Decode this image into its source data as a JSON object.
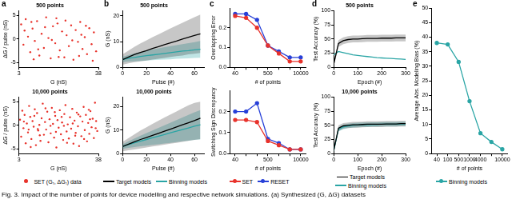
{
  "caption": "Fig. 3. Impact of the number of points for device modelling and respective network simulations. (a) Synthesized (G, ΔG) datasets",
  "chart_data": [
    {
      "type": "scatter",
      "panel": "a",
      "annotation": "500 points",
      "x_label": "G (nS)",
      "y_label": "ΔG / pulse (nS)",
      "xlim": [
        3,
        38
      ],
      "xticks": [
        3,
        38
      ],
      "ylim": [
        -6,
        6
      ],
      "yticks": [
        -5,
        0,
        5
      ],
      "grid": false,
      "x": [
        4,
        5,
        6,
        7,
        8,
        9,
        10,
        11,
        12,
        13,
        14,
        15,
        16,
        17,
        18,
        19,
        20,
        21,
        22,
        23,
        24,
        25,
        26,
        27,
        28,
        29,
        30,
        31,
        32,
        33,
        34,
        35,
        36,
        37,
        5.5,
        8.5,
        11.5,
        14.5,
        17.5,
        20.5,
        23.5,
        26.5,
        29.5,
        32.5,
        35.5,
        9.5,
        19.5,
        30.5
      ],
      "series": [
        {
          "name": "SET (Gₜ, ΔGₜ) data",
          "color": "#e8322b",
          "marker": "circle",
          "values": [
            3.1,
            -1.2,
            4.2,
            0.5,
            -2.8,
            2.2,
            -0.4,
            3.8,
            -3.5,
            1.1,
            -1.9,
            4.6,
            0.2,
            -4.1,
            2.7,
            -0.9,
            3.3,
            -2.4,
            1.6,
            -3.9,
            0.8,
            -1.5,
            2.9,
            -4.4,
            1.9,
            -0.6,
            3.6,
            -2.1,
            0.4,
            -3.2,
            2.3,
            -1.1,
            1.4,
            -2.6,
            1.8,
            3.6,
            -2.2,
            2.5,
            -0.2,
            -3.8,
            3.9,
            -0.3,
            -3.6,
            2.8,
            -4.6,
            -4.3,
            4.4,
            0.9
          ]
        }
      ]
    },
    {
      "type": "scatter",
      "annotation": "10,000 points",
      "x_label": "G (nS)",
      "y_label": "ΔG / pulse (nS)",
      "xlim": [
        3,
        38
      ],
      "xticks": [
        3,
        38
      ],
      "ylim": [
        -6,
        6
      ],
      "yticks": [
        -5,
        0,
        5
      ],
      "grid": false,
      "legend": "bottom",
      "x": [
        3.5,
        4,
        4.5,
        5,
        5.5,
        6,
        6.5,
        7,
        7.5,
        8,
        8.5,
        9,
        9.5,
        10,
        10.5,
        11,
        11.5,
        12,
        12.5,
        13,
        13.5,
        14,
        14.5,
        15,
        15.5,
        16,
        16.5,
        17,
        17.5,
        18,
        18.5,
        19,
        19.5,
        20,
        20.5,
        21,
        21.5,
        22,
        22.5,
        23,
        23.5,
        24,
        24.5,
        25,
        25.5,
        26,
        26.5,
        27,
        27.5,
        28,
        28.5,
        29,
        29.5,
        30,
        30.5,
        31,
        31.5,
        32,
        32.5,
        33,
        33.5,
        34,
        34.5,
        35,
        35.5,
        36,
        36.5,
        37,
        37.5,
        5.2,
        7.3,
        9.8,
        12.2,
        14.7,
        16.9,
        19.3,
        21.8,
        24.2,
        26.7,
        29.2,
        31.7,
        34.3,
        36.8,
        11.3,
        18.8,
        27.8,
        33.8,
        8.2,
        22.8
      ],
      "series": [
        {
          "name": "SET (Gₜ, ΔGₜ) data",
          "color": "#e8322b",
          "marker": "circle",
          "values": [
            1.2,
            -2.4,
            3.1,
            -0.6,
            2.2,
            -3.8,
            0.4,
            -1.5,
            4.1,
            1.8,
            -2.9,
            0.9,
            -0.3,
            3.4,
            -4.2,
            2.6,
            -1.1,
            0.1,
            -3.3,
            1.5,
            4.6,
            -2.0,
            0.7,
            -0.9,
            2.9,
            -3.6,
            1.3,
            -1.7,
            3.7,
            0.3,
            -2.6,
            2.0,
            -4.7,
            1.1,
            -0.5,
            3.2,
            -1.9,
            0.6,
            -3.1,
            2.4,
            4.3,
            -1.3,
            0.2,
            -2.8,
            1.7,
            -0.7,
            3.5,
            -3.9,
            1.0,
            -1.6,
            2.7,
            -0.2,
            -4.4,
            1.9,
            -2.3,
            0.8,
            3.9,
            -1.0,
            2.2,
            -3.4,
            0.5,
            -1.8,
            3.0,
            -0.4,
            1.4,
            -2.7,
            4.8,
            0.9,
            -1.2,
            0.8,
            -0.9,
            2.0,
            -2.1,
            3.6,
            -0.1,
            -1.4,
            1.8,
            -3.7,
            0.4,
            2.3,
            -2.9,
            1.3,
            -0.6,
            -0.8,
            2.8,
            -2.2,
            3.3,
            -4.6,
            -0.1
          ]
        }
      ]
    },
    {
      "type": "line",
      "panel": "b",
      "annotation": "500 points",
      "x_label": "Pulse (#)",
      "y_label": "G (nS)",
      "xlim": [
        0,
        68
      ],
      "xticks": [
        0,
        20,
        40,
        60
      ],
      "ylim": [
        0,
        22
      ],
      "yticks": [
        0,
        10,
        20
      ],
      "grid": false,
      "x": [
        0,
        5,
        10,
        15,
        20,
        25,
        30,
        35,
        40,
        45,
        50,
        55,
        60,
        65
      ],
      "series": [
        {
          "name": "Target models",
          "color": "#000000",
          "line_style": "solid",
          "values": [
            3,
            4,
            5,
            5.8,
            6.5,
            7.3,
            8,
            8.8,
            9.5,
            10.2,
            11,
            11.7,
            12.4,
            13
          ],
          "band_lower": [
            1,
            1.5,
            2,
            2.3,
            2.6,
            3,
            3.3,
            3.6,
            4,
            4.3,
            4.6,
            5,
            5.3,
            5.6
          ],
          "band_upper": [
            5,
            6.5,
            8,
            9.3,
            10.5,
            11.7,
            12.8,
            14,
            15.1,
            16.2,
            17.3,
            18.4,
            19.5,
            20.5
          ]
        },
        {
          "name": "Binning models",
          "color": "#2aa5a5",
          "line_style": "solid",
          "values": [
            3,
            3.5,
            3.8,
            4.2,
            4.5,
            4.8,
            5.1,
            5.4,
            5.7,
            6,
            6.3,
            6.5,
            6.8,
            7
          ],
          "band_lower": [
            2,
            2.2,
            2.3,
            2.5,
            2.6,
            2.8,
            2.9,
            3,
            3.1,
            3.3,
            3.4,
            3.5,
            3.6,
            3.7
          ],
          "band_upper": [
            4,
            4.8,
            5.4,
            6,
            6.5,
            7,
            7.4,
            7.8,
            8.2,
            8.6,
            9,
            9.4,
            9.8,
            10.2
          ]
        }
      ]
    },
    {
      "type": "line",
      "annotation": "10,000 points",
      "x_label": "Pulse (#)",
      "y_label": "G (nS)",
      "xlim": [
        0,
        68
      ],
      "xticks": [
        0,
        20,
        40,
        60
      ],
      "ylim": [
        0,
        24
      ],
      "yticks": [
        0,
        10,
        20
      ],
      "grid": false,
      "legend": "bottom",
      "x": [
        0,
        5,
        10,
        15,
        20,
        25,
        30,
        35,
        40,
        45,
        50,
        55,
        60,
        65
      ],
      "series": [
        {
          "name": "Target models",
          "color": "#000000",
          "line_style": "solid",
          "values": [
            3,
            4,
            5,
            6,
            6.8,
            7.7,
            8.6,
            9.5,
            10.4,
            11.3,
            12.2,
            13.1,
            14,
            15
          ],
          "band_lower": [
            1,
            1.4,
            1.8,
            2.2,
            2.6,
            3,
            3.4,
            3.8,
            4.2,
            4.6,
            5,
            5.4,
            5.8,
            6.2
          ],
          "band_upper": [
            5,
            6.6,
            8.2,
            9.8,
            11.2,
            12.6,
            14,
            15.3,
            16.6,
            17.9,
            19.2,
            20.5,
            21.5,
            22
          ]
        },
        {
          "name": "Binning models",
          "color": "#2aa5a5",
          "line_style": "solid",
          "values": [
            3,
            3.8,
            4.6,
            5.3,
            6,
            6.7,
            7.4,
            8.1,
            8.8,
            9.5,
            10.2,
            10.9,
            11.6,
            12.2
          ],
          "band_lower": [
            2,
            2.4,
            2.8,
            3.1,
            3.4,
            3.7,
            4,
            4.3,
            4.6,
            4.9,
            5.2,
            5.5,
            5.8,
            6
          ],
          "band_upper": [
            4,
            5.2,
            6.4,
            7.6,
            8.7,
            9.8,
            10.9,
            12,
            13.1,
            14.2,
            15.3,
            16.4,
            17.5,
            18.5
          ]
        }
      ]
    },
    {
      "type": "line",
      "panel": "c",
      "x_label": "# of points",
      "y_label": "Overlapping Error",
      "categories": [
        "40",
        null,
        null,
        "500",
        null,
        null,
        "10000"
      ],
      "ylim": [
        0,
        0.3
      ],
      "yticks": [
        {
          "value": 0,
          "label": "0.0"
        },
        0.1,
        0.2
      ],
      "grid": false,
      "series": [
        {
          "name": "SET",
          "color": "#e8322b",
          "marker": "circle",
          "line_style": "solid",
          "values": [
            0.26,
            0.25,
            0.2,
            0.11,
            0.07,
            0.03,
            0.03
          ]
        },
        {
          "name": "RESET",
          "color": "#2740d8",
          "marker": "circle",
          "line_style": "solid",
          "values": [
            0.27,
            0.27,
            0.24,
            0.11,
            0.08,
            0.05,
            0.05
          ]
        }
      ]
    },
    {
      "type": "line",
      "x_label": "# of points",
      "y_label": "Switching Sign Discrepancy",
      "categories": [
        "40",
        null,
        null,
        "500",
        null,
        null,
        "10000"
      ],
      "ylim": [
        0,
        0.3
      ],
      "yticks": [
        {
          "value": 0,
          "label": "0.0"
        },
        0.1,
        0.2
      ],
      "grid": false,
      "legend": "bottom",
      "series": [
        {
          "name": "SET",
          "color": "#e8322b",
          "marker": "circle",
          "line_style": "solid",
          "values": [
            0.16,
            0.16,
            0.15,
            0.06,
            0.04,
            0.02,
            0.02
          ]
        },
        {
          "name": "RESET",
          "color": "#2740d8",
          "marker": "circle",
          "line_style": "solid",
          "values": [
            0.2,
            0.2,
            0.24,
            0.07,
            0.05,
            0.02,
            0.02
          ]
        }
      ]
    },
    {
      "type": "line",
      "panel": "d",
      "annotation": "500 points",
      "x_label": "Epoch (#)",
      "y_label": "Test Accuracy (%)",
      "xlim": [
        0,
        300
      ],
      "xticks": [
        0,
        100,
        200,
        300
      ],
      "ylim": [
        0,
        100
      ],
      "yticks": [
        0,
        25,
        50,
        75,
        100
      ],
      "grid": false,
      "x": [
        0,
        20,
        40,
        60,
        80,
        100,
        120,
        140,
        160,
        180,
        200,
        220,
        240,
        260,
        280,
        300
      ],
      "series": [
        {
          "name": "Target models",
          "color": "#000000",
          "line_style": "solid",
          "values": [
            5,
            42,
            47,
            49,
            50,
            50,
            50.5,
            51,
            51,
            51,
            51.5,
            51.5,
            51.5,
            52,
            52,
            52
          ],
          "band_lower": [
            2,
            36,
            41,
            43,
            44,
            44,
            44.5,
            45,
            45,
            45,
            45.5,
            45.5,
            45.5,
            46,
            46,
            46
          ],
          "band_upper": [
            8,
            48,
            53,
            55,
            56,
            56,
            56.5,
            57,
            57,
            57,
            57.5,
            57.5,
            57.5,
            58,
            58,
            58
          ]
        },
        {
          "name": "Binning models",
          "color": "#2aa5a5",
          "line_style": "solid",
          "values": [
            22,
            28,
            26,
            24,
            22,
            21,
            20,
            19,
            18,
            17,
            16.5,
            16,
            15.5,
            15,
            14.5,
            14
          ]
        }
      ]
    },
    {
      "type": "line",
      "annotation": "10,000 points",
      "x_label": "Epoch (#)",
      "y_label": "Test Accuracy (%)",
      "xlim": [
        0,
        300
      ],
      "xticks": [
        0,
        100,
        200,
        300
      ],
      "ylim": [
        0,
        100
      ],
      "yticks": [
        0,
        25,
        50,
        75,
        100
      ],
      "grid": false,
      "legend": "bottom",
      "x": [
        0,
        20,
        40,
        60,
        80,
        100,
        120,
        140,
        160,
        180,
        200,
        220,
        240,
        260,
        280,
        300
      ],
      "series": [
        {
          "name": "Target models",
          "color": "#000000",
          "line_style": "solid",
          "values": [
            5,
            45,
            49,
            50,
            51,
            51,
            51.5,
            52,
            52,
            52,
            52,
            52.5,
            52.5,
            52.5,
            53,
            53
          ],
          "band_lower": [
            2,
            40,
            44,
            45,
            46,
            46,
            46.5,
            47,
            47,
            47,
            47,
            47.5,
            47.5,
            47.5,
            48,
            48
          ],
          "band_upper": [
            8,
            50,
            54,
            55,
            56,
            56,
            56.5,
            57,
            57,
            57,
            57,
            57.5,
            57.5,
            57.5,
            58,
            58
          ]
        },
        {
          "name": "Binning models",
          "color": "#2aa5a5",
          "line_style": "solid",
          "values": [
            5,
            43,
            47,
            49,
            50,
            50.5,
            51,
            51,
            51.5,
            51.5,
            52,
            52,
            52,
            52,
            52.5,
            52.5
          ],
          "band_lower": [
            2,
            39,
            43,
            45,
            46,
            46.5,
            47,
            47,
            47.5,
            47.5,
            48,
            48,
            48,
            48,
            48.5,
            48.5
          ],
          "band_upper": [
            8,
            47,
            51,
            53,
            54,
            54.5,
            55,
            55,
            55.5,
            55.5,
            56,
            56,
            56,
            56,
            56.5,
            56.5
          ]
        }
      ]
    },
    {
      "type": "line",
      "panel": "e",
      "x_label": "# of points",
      "y_label": "Average Abs. Modeling Bias (%)",
      "categories": [
        "40",
        "100",
        "500",
        "1000",
        "4000",
        null,
        "10000"
      ],
      "ylim": [
        0,
        50
      ],
      "yticks": [
        0,
        5,
        10,
        15,
        20,
        25,
        30,
        35,
        40,
        45,
        50
      ],
      "grid": false,
      "legend": "bottom",
      "series": [
        {
          "name": "Binning models",
          "color": "#2aa5a5",
          "marker": "circle",
          "line_style": "solid",
          "values": [
            38,
            37.5,
            31.5,
            18,
            7,
            4,
            1.5
          ]
        }
      ]
    }
  ]
}
